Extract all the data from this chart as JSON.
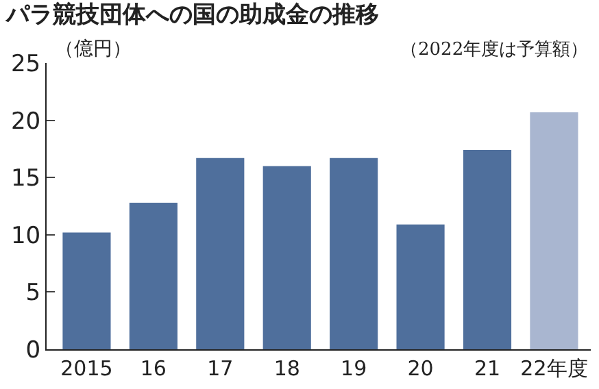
{
  "chart_data": {
    "type": "bar",
    "title": "パラ競技団体への国の助成金の推移",
    "ylabel": "（億円）",
    "annotations": [
      "（2022年度は予算額）"
    ],
    "categories": [
      "2015",
      "16",
      "17",
      "18",
      "19",
      "20",
      "21",
      "22年度"
    ],
    "values": [
      10.2,
      12.8,
      16.7,
      16.0,
      16.7,
      10.9,
      17.4,
      20.7
    ],
    "colors": [
      "#4f6f9c",
      "#4f6f9c",
      "#4f6f9c",
      "#4f6f9c",
      "#4f6f9c",
      "#4f6f9c",
      "#4f6f9c",
      "#a9b6d0"
    ],
    "ylim": [
      0,
      25
    ],
    "yticks": [
      0,
      5,
      10,
      15,
      20,
      25
    ]
  }
}
